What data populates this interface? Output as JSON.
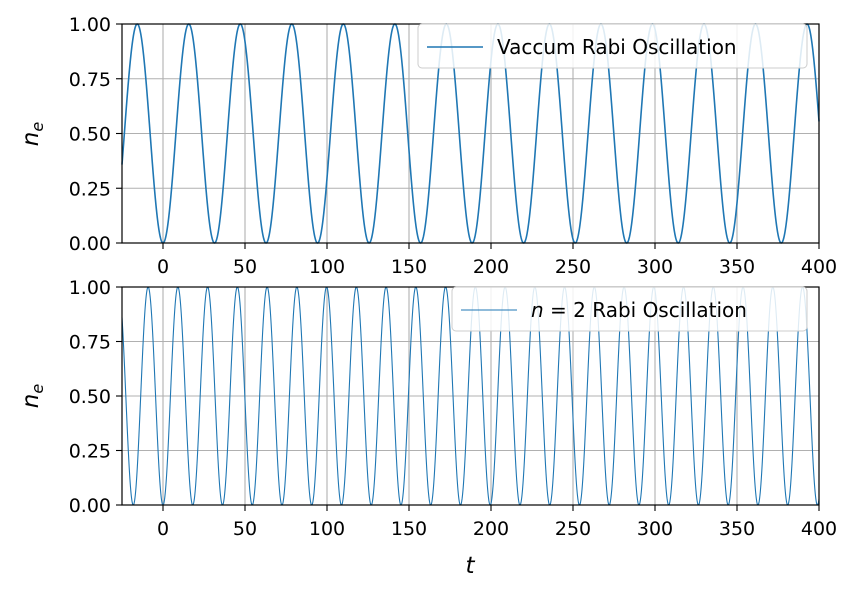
{
  "chart_data": [
    {
      "type": "line",
      "title": "",
      "xlabel": "",
      "ylabel": "n",
      "ylabel_sub": "e",
      "xlim": [
        -25,
        400
      ],
      "ylim": [
        0,
        1
      ],
      "xticks": [
        0,
        50,
        100,
        150,
        200,
        250,
        300,
        350,
        400
      ],
      "xtick_labels": [
        "0",
        "50",
        "100",
        "150",
        "200",
        "250",
        "300",
        "350",
        "400"
      ],
      "yticks": [
        0,
        0.25,
        0.5,
        0.75,
        1
      ],
      "ytick_labels": [
        "0.00",
        "0.25",
        "0.50",
        "0.75",
        "1.00"
      ],
      "grid": true,
      "legend_position": "top-right",
      "series": [
        {
          "name": "Vaccum Rabi Oscillation",
          "formula": "sin^2(omega t / 2)",
          "omega": 0.2,
          "color": "#1f77b4",
          "peaks_t": [
            -15.7,
            15.7,
            47.1,
            78.5,
            110.0,
            141.4,
            172.8,
            204.2,
            235.6,
            267.0,
            298.5,
            329.9,
            361.3,
            392.7
          ],
          "zeros_t": [
            0,
            31.4,
            62.8,
            94.2,
            125.7,
            157.1,
            188.5,
            219.9,
            251.3,
            282.7,
            314.2,
            345.6,
            377.0
          ]
        }
      ]
    },
    {
      "type": "line",
      "title": "",
      "xlabel": "t",
      "ylabel": "n",
      "ylabel_sub": "e",
      "xlim": [
        -25,
        400
      ],
      "ylim": [
        0,
        1
      ],
      "xticks": [
        0,
        50,
        100,
        150,
        200,
        250,
        300,
        350,
        400
      ],
      "xtick_labels": [
        "0",
        "50",
        "100",
        "150",
        "200",
        "250",
        "300",
        "350",
        "400"
      ],
      "yticks": [
        0,
        0.25,
        0.5,
        0.75,
        1
      ],
      "ytick_labels": [
        "0.00",
        "0.25",
        "0.50",
        "0.75",
        "1.00"
      ],
      "grid": true,
      "legend_position": "top-right",
      "series": [
        {
          "name": "n = 2 Rabi Oscillation",
          "name_prefix": "n",
          "name_suffix": " = 2 Rabi Oscillation",
          "formula": "sin^2(omega t / 2)",
          "omega": 0.3464,
          "color": "#1f77b4",
          "peaks_t": [
            -9.07,
            9.07,
            27.2,
            45.3,
            63.5,
            81.6,
            99.7,
            117.9,
            136.0,
            154.1,
            172.3,
            190.4,
            208.6,
            226.7,
            244.8,
            263.0,
            281.1,
            299.2,
            317.4,
            335.5,
            353.6,
            371.8,
            389.9
          ],
          "zeros_t": [
            0,
            18.1,
            36.3,
            54.4,
            72.5,
            90.7,
            108.8,
            126.9,
            145.1,
            163.2,
            181.4,
            199.5,
            217.6,
            235.8,
            253.9,
            272.0,
            290.2,
            308.3,
            326.4,
            344.6,
            362.7,
            380.8,
            399.0
          ]
        }
      ]
    }
  ]
}
